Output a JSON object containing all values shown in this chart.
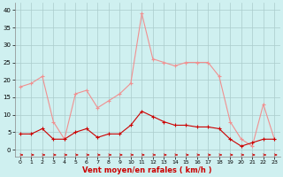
{
  "x": [
    0,
    1,
    2,
    3,
    4,
    5,
    6,
    7,
    8,
    9,
    10,
    11,
    12,
    13,
    14,
    15,
    16,
    17,
    18,
    19,
    20,
    21,
    22,
    23
  ],
  "rafales": [
    18,
    19,
    21,
    8,
    3,
    16,
    17,
    12,
    14,
    16,
    19,
    39,
    26,
    25,
    24,
    25,
    25,
    25,
    21,
    8,
    3,
    1,
    13,
    3
  ],
  "moyen": [
    4.5,
    4.5,
    6,
    3,
    3,
    5,
    6,
    3.5,
    4.5,
    4.5,
    7,
    11,
    9.5,
    8,
    7,
    7,
    6.5,
    6.5,
    6,
    3,
    1,
    2,
    3,
    3
  ],
  "bg_color": "#cff0f0",
  "grid_color": "#aacccc",
  "line_color_rafales": "#f09090",
  "line_color_moyen": "#cc0000",
  "xlabel": "Vent moyen/en rafales ( km/h )",
  "xlabel_color": "#cc0000",
  "yticks": [
    0,
    5,
    10,
    15,
    20,
    25,
    30,
    35,
    40
  ],
  "xticks": [
    0,
    1,
    2,
    3,
    4,
    5,
    6,
    7,
    8,
    9,
    10,
    11,
    12,
    13,
    14,
    15,
    16,
    17,
    18,
    19,
    20,
    21,
    22,
    23
  ],
  "ylim": [
    -2,
    42
  ],
  "xlim": [
    -0.5,
    23.5
  ]
}
